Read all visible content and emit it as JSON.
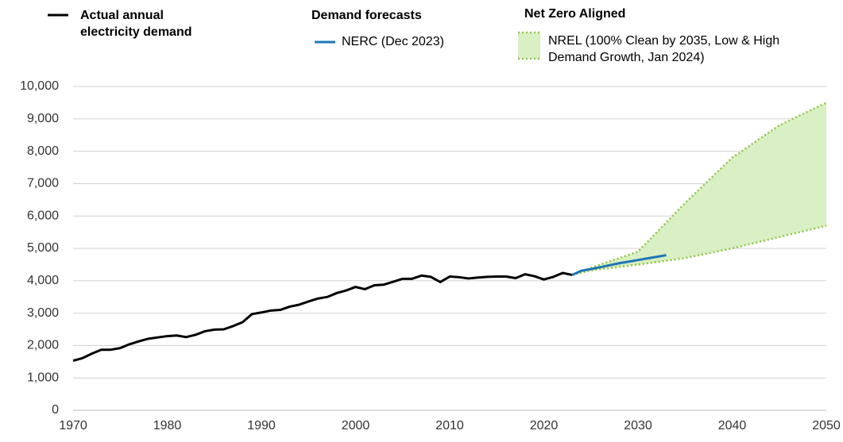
{
  "chart_data": {
    "type": "line",
    "legend_groups": [
      "Demand forecasts",
      "Net Zero Aligned"
    ],
    "xlim": [
      1970,
      2050
    ],
    "xticks": [
      1970,
      1980,
      1990,
      2000,
      2010,
      2020,
      2030,
      2040,
      2050
    ],
    "ylim": [
      0,
      10000
    ],
    "yticks": [
      0,
      {
        "value": 1000,
        "label": "1,000"
      },
      {
        "value": 2000,
        "label": "2,000"
      },
      {
        "value": 3000,
        "label": "3,000"
      },
      {
        "value": 4000,
        "label": "4,000"
      },
      {
        "value": 5000,
        "label": "5,000"
      },
      {
        "value": 6000,
        "label": "6,000"
      },
      {
        "value": 7000,
        "label": "7,000"
      },
      {
        "value": 8000,
        "label": "8,000"
      },
      {
        "value": 9000,
        "label": "9,000"
      },
      {
        "value": 10000,
        "label": "10,000"
      }
    ],
    "grid": true,
    "series": [
      {
        "name": "Actual annual electricity demand",
        "color": "#000000",
        "x": [
          1970,
          1971,
          1972,
          1973,
          1974,
          1975,
          1976,
          1977,
          1978,
          1979,
          1980,
          1981,
          1982,
          1983,
          1984,
          1985,
          1986,
          1987,
          1988,
          1989,
          1990,
          1991,
          1992,
          1993,
          1994,
          1995,
          1996,
          1997,
          1998,
          1999,
          2000,
          2001,
          2002,
          2003,
          2004,
          2005,
          2006,
          2007,
          2008,
          2009,
          2010,
          2011,
          2012,
          2013,
          2014,
          2015,
          2016,
          2017,
          2018,
          2019,
          2020,
          2021,
          2022,
          2023
        ],
        "values": [
          1530,
          1610,
          1750,
          1870,
          1870,
          1920,
          2040,
          2130,
          2210,
          2250,
          2290,
          2310,
          2260,
          2330,
          2440,
          2490,
          2500,
          2600,
          2720,
          2970,
          3020,
          3080,
          3100,
          3200,
          3260,
          3360,
          3450,
          3500,
          3620,
          3700,
          3810,
          3740,
          3860,
          3880,
          3970,
          4060,
          4060,
          4160,
          4120,
          3960,
          4130,
          4110,
          4070,
          4100,
          4120,
          4130,
          4130,
          4080,
          4200,
          4140,
          4040,
          4120,
          4240,
          4180
        ]
      },
      {
        "name": "NERC (Dec 2023)",
        "color": "#1f77b4",
        "x": [
          2023,
          2024,
          2025,
          2026,
          2027,
          2028,
          2029,
          2030,
          2031,
          2032,
          2033
        ],
        "values": [
          4180,
          4310,
          4360,
          4420,
          4480,
          4540,
          4590,
          4640,
          4690,
          4740,
          4790
        ]
      },
      {
        "name": "NREL (100% Clean by 2035, Low & High Demand Growth, Jan 2024)",
        "color": "#8dc63f",
        "fill": "#d9efc4",
        "x": [
          2023,
          2025,
          2030,
          2035,
          2040,
          2045,
          2050
        ],
        "low": [
          4180,
          4320,
          4500,
          4700,
          5000,
          5350,
          5700
        ],
        "high": [
          4180,
          4400,
          4900,
          6400,
          7800,
          8800,
          9500
        ]
      }
    ]
  }
}
